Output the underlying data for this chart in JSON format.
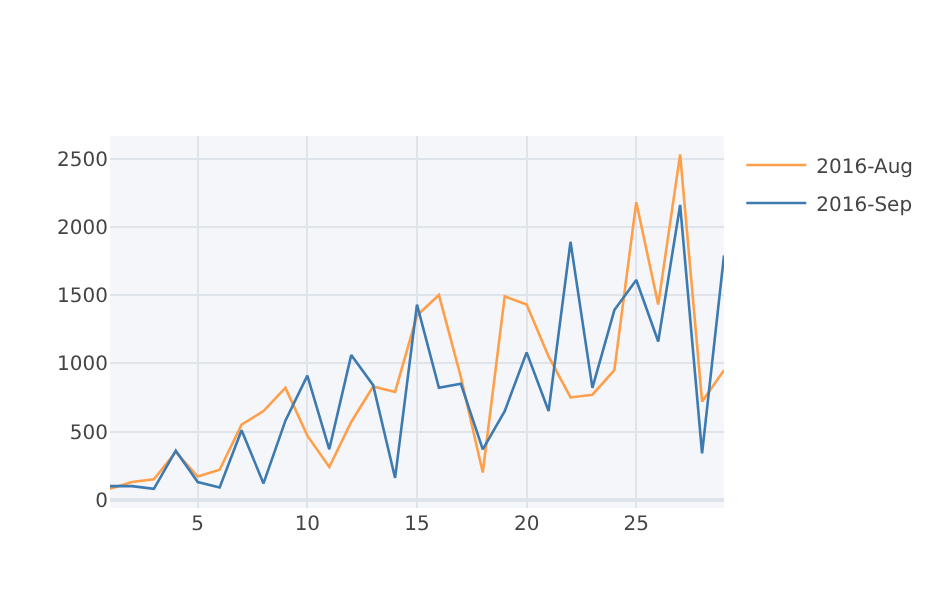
{
  "chart_data": {
    "type": "line",
    "x": [
      1,
      2,
      3,
      4,
      5,
      6,
      7,
      8,
      9,
      10,
      11,
      12,
      13,
      14,
      15,
      16,
      17,
      18,
      19,
      20,
      21,
      22,
      23,
      24,
      25,
      26,
      27,
      28,
      29
    ],
    "series": [
      {
        "name": "2016-Aug",
        "color": "#ff9f4a",
        "values": [
          80,
          130,
          150,
          350,
          170,
          220,
          550,
          650,
          820,
          470,
          240,
          570,
          830,
          790,
          1350,
          1500,
          900,
          200,
          1490,
          1430,
          1050,
          750,
          770,
          950,
          2180,
          1430,
          2530,
          720,
          950
        ]
      },
      {
        "name": "2016-Sep",
        "color": "#3d7ab0",
        "values": [
          100,
          100,
          80,
          360,
          130,
          90,
          510,
          120,
          580,
          910,
          370,
          1060,
          840,
          160,
          1430,
          820,
          850,
          370,
          650,
          1080,
          650,
          1890,
          820,
          1390,
          1610,
          1160,
          2160,
          340,
          1790
        ]
      }
    ],
    "xlim": [
      1,
      29
    ],
    "xticks": [
      5,
      10,
      15,
      20,
      25
    ],
    "ylim": [
      -60,
      2665
    ],
    "yticks": [
      0,
      500,
      1000,
      1500,
      2000,
      2500
    ],
    "grid": true,
    "legend": "top right",
    "marker": "none",
    "line_style": "solid"
  }
}
